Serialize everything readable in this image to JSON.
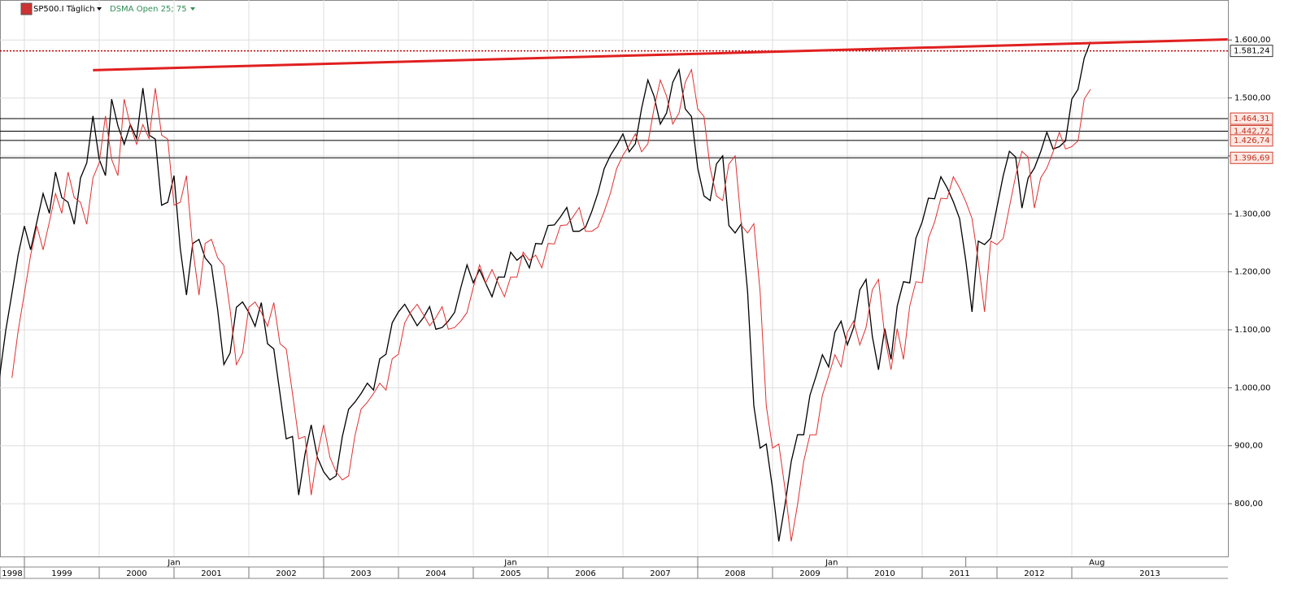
{
  "chart_data": {
    "type": "line",
    "title": "SP500.I Täglich",
    "indicator": "DSMA Open  25; 75",
    "categories": [
      "1998",
      null,
      null,
      null,
      "1999",
      null,
      null,
      null,
      null,
      null,
      null,
      null,
      null,
      null,
      null,
      null,
      "2000",
      null,
      null,
      null,
      null,
      null,
      null,
      null,
      null,
      null,
      null,
      null,
      "2001",
      null,
      null,
      null,
      null,
      null,
      null,
      null,
      null,
      null,
      null,
      null,
      "2002",
      null,
      null,
      null,
      null,
      null,
      null,
      null,
      null,
      null,
      null,
      null,
      "2003",
      null,
      null,
      null,
      null,
      null,
      null,
      null,
      null,
      null,
      null,
      null,
      "2004",
      null,
      null,
      null,
      null,
      null,
      null,
      null,
      null,
      null,
      null,
      null,
      "2005",
      null,
      null,
      null,
      null,
      null,
      null,
      null,
      null,
      null,
      null,
      null,
      "2006",
      null,
      null,
      null,
      null,
      null,
      null,
      null,
      null,
      null,
      null,
      null,
      "2007",
      null,
      null,
      null,
      null,
      null,
      null,
      null,
      null,
      null,
      null,
      null,
      "2008",
      null,
      null,
      null,
      null,
      null,
      null,
      null,
      null,
      null,
      null,
      null,
      "2009",
      null,
      null,
      null,
      null,
      null,
      null,
      null,
      null,
      null,
      null,
      null,
      "2010",
      null,
      null,
      null,
      null,
      null,
      null,
      null,
      null,
      null,
      null,
      null,
      "2011",
      null,
      null,
      null,
      null,
      null,
      null,
      null,
      null,
      null,
      null,
      null,
      "2012",
      null,
      null,
      null,
      null,
      null,
      null,
      null,
      null,
      null,
      null,
      null,
      "2013",
      null,
      null,
      null
    ],
    "categories_upper": [
      null,
      null,
      null,
      null,
      "Jan",
      null,
      null,
      null,
      null,
      null,
      null,
      null,
      null,
      null,
      null,
      null,
      null,
      null,
      null,
      null,
      null,
      null,
      null,
      null,
      null,
      null,
      null,
      null,
      null,
      null,
      null,
      null,
      null,
      null,
      null,
      null,
      null,
      null,
      null,
      null,
      null,
      null,
      null,
      null,
      null,
      null,
      null,
      null,
      null,
      null,
      null,
      null,
      "Jan",
      null,
      null,
      null,
      null,
      null,
      null,
      null,
      null,
      null,
      null,
      null,
      null,
      null,
      null,
      null,
      null,
      null,
      null,
      null,
      null,
      null,
      null,
      null,
      null,
      null,
      null,
      null,
      null,
      null,
      null,
      null,
      null,
      null,
      null,
      null,
      null,
      null,
      null,
      null,
      null,
      null,
      null,
      null,
      null,
      null,
      null,
      null,
      null,
      null,
      null,
      null,
      null,
      null,
      null,
      null,
      null,
      null,
      null,
      null,
      "Jan",
      null,
      null,
      null,
      null,
      null,
      null,
      null,
      null,
      null,
      null,
      null,
      null,
      null,
      null,
      null,
      null,
      null,
      null,
      null,
      null,
      null,
      null,
      null,
      null,
      null,
      null,
      null,
      null,
      null,
      null,
      null,
      null,
      null,
      null,
      null,
      null,
      null,
      null,
      null,
      null,
      null,
      null,
      "Aug",
      null,
      null,
      null,
      null,
      null,
      null,
      null,
      null,
      null,
      null,
      null,
      null,
      null,
      null,
      null,
      null,
      null,
      null,
      null,
      null
    ],
    "series": [
      {
        "name": "SP500.I",
        "color": "#000000",
        "values": [
          1017,
          1098,
          1163,
          1229,
          1279,
          1238,
          1286,
          1335,
          1301,
          1372,
          1328,
          1320,
          1282,
          1362,
          1388,
          1469,
          1394,
          1366,
          1498,
          1452,
          1420,
          1454,
          1430,
          1517,
          1436,
          1429,
          1315,
          1320,
          1366,
          1240,
          1160,
          1249,
          1256,
          1224,
          1211,
          1134,
          1040,
          1060,
          1139,
          1148,
          1130,
          1106,
          1147,
          1076,
          1067,
          990,
          912,
          916,
          815,
          885,
          936,
          880,
          855,
          841,
          848,
          916,
          963,
          975,
          990,
          1008,
          996,
          1050,
          1058,
          1112,
          1131,
          1144,
          1126,
          1107,
          1121,
          1140,
          1101,
          1104,
          1115,
          1130,
          1173,
          1212,
          1181,
          1204,
          1180,
          1157,
          1191,
          1191,
          1234,
          1220,
          1229,
          1207,
          1249,
          1248,
          1280,
          1281,
          1295,
          1311,
          1270,
          1270,
          1277,
          1304,
          1336,
          1378,
          1401,
          1418,
          1438,
          1407,
          1421,
          1482,
          1531,
          1503,
          1455,
          1474,
          1527,
          1549,
          1481,
          1468,
          1379,
          1331,
          1323,
          1386,
          1400,
          1280,
          1267,
          1283,
          1166,
          969,
          896,
          903,
          826,
          735,
          798,
          873,
          919,
          919,
          987,
          1021,
          1057,
          1036,
          1096,
          1115,
          1074,
          1104,
          1169,
          1187,
          1089,
          1031,
          1102,
          1049,
          1141,
          1183,
          1181,
          1258,
          1286,
          1327,
          1326,
          1364,
          1345,
          1321,
          1292,
          1219,
          1131,
          1253,
          1247,
          1258,
          1312,
          1366,
          1408,
          1398,
          1310,
          1362,
          1379,
          1407,
          1441,
          1412,
          1416,
          1426,
          1498,
          1515,
          1569,
          1597
        ]
      },
      {
        "name": "DSMA Open 75",
        "color": "#e03030",
        "values": [
          null,
          null,
          1017,
          1098,
          1163,
          1229,
          1279,
          1238,
          1286,
          1335,
          1301,
          1372,
          1328,
          1320,
          1282,
          1362,
          1388,
          1469,
          1394,
          1366,
          1498,
          1452,
          1420,
          1454,
          1430,
          1517,
          1436,
          1429,
          1315,
          1320,
          1366,
          1240,
          1160,
          1249,
          1256,
          1224,
          1211,
          1134,
          1040,
          1060,
          1139,
          1148,
          1130,
          1106,
          1147,
          1076,
          1067,
          990,
          912,
          916,
          815,
          885,
          936,
          880,
          855,
          841,
          848,
          916,
          963,
          975,
          990,
          1008,
          996,
          1050,
          1058,
          1112,
          1131,
          1144,
          1126,
          1107,
          1121,
          1140,
          1101,
          1104,
          1115,
          1130,
          1173,
          1212,
          1181,
          1204,
          1180,
          1157,
          1191,
          1191,
          1234,
          1220,
          1229,
          1207,
          1249,
          1248,
          1280,
          1281,
          1295,
          1311,
          1270,
          1270,
          1277,
          1304,
          1336,
          1378,
          1401,
          1418,
          1438,
          1407,
          1421,
          1482,
          1531,
          1503,
          1455,
          1474,
          1527,
          1549,
          1481,
          1468,
          1379,
          1331,
          1323,
          1386,
          1400,
          1280,
          1267,
          1283,
          1166,
          969,
          896,
          903,
          826,
          735,
          798,
          873,
          919,
          919,
          987,
          1021,
          1057,
          1036,
          1096,
          1115,
          1074,
          1104,
          1169,
          1187,
          1089,
          1031,
          1102,
          1049,
          1141,
          1183,
          1181,
          1258,
          1286,
          1327,
          1326,
          1364,
          1345,
          1321,
          1292,
          1219,
          1131,
          1253,
          1247,
          1258,
          1312,
          1366,
          1408,
          1398,
          1310,
          1362,
          1379,
          1407,
          1441,
          1412,
          1416,
          1426,
          1498,
          1515
        ]
      }
    ],
    "trend_line": {
      "color": "#e02020",
      "x": [
        15,
        197
      ],
      "values": [
        1548,
        1601
      ]
    },
    "levels": [
      {
        "value": 1581.24,
        "label": "1.581,24",
        "style": "dotted",
        "color": "#c00000"
      },
      {
        "value": 1464.31,
        "label": "1.464,31",
        "style": "solid",
        "color": "#000000"
      },
      {
        "value": 1442.72,
        "label": "1.442,72",
        "style": "solid",
        "color": "#000000"
      },
      {
        "value": 1426.74,
        "label": "1.426,74",
        "style": "solid",
        "color": "#000000"
      },
      {
        "value": 1396.69,
        "label": "1.396,69",
        "style": "solid",
        "color": "#000000"
      }
    ],
    "ylim": [
      709,
      1669
    ],
    "yticks": [
      {
        "value": 800,
        "label": "800,00"
      },
      {
        "value": 900,
        "label": "900,00"
      },
      {
        "value": 1000,
        "label": "1.000,00"
      },
      {
        "value": 1100,
        "label": "1.100,00"
      },
      {
        "value": 1200,
        "label": "1.200,00"
      },
      {
        "value": 1300,
        "label": "1.300,00"
      },
      {
        "value": 1400,
        "label": "1.400,00"
      },
      {
        "value": 1500,
        "label": "1.500,00"
      },
      {
        "value": 1600,
        "label": "1.600,00"
      }
    ],
    "grid": true
  }
}
